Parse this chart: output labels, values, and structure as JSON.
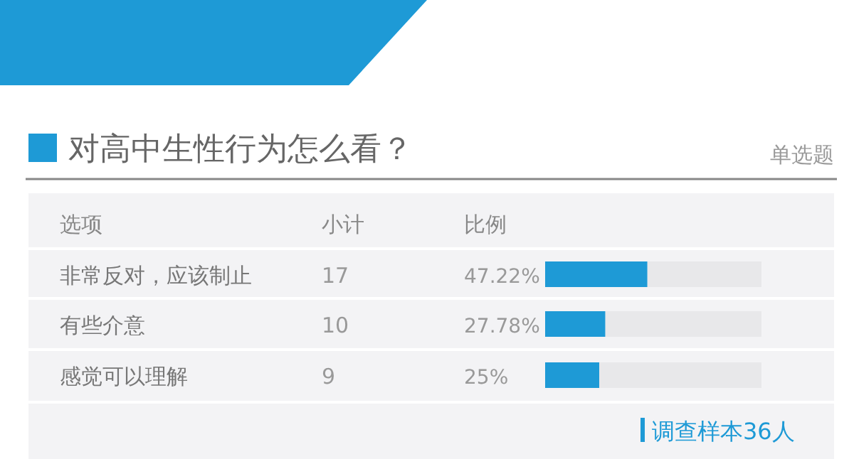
{
  "chart_data": {
    "type": "bar",
    "orientation": "horizontal",
    "title": "对高中生性行为怎么看？",
    "categories": [
      "非常反对，应该制止",
      "有些介意",
      "感觉可以理解"
    ],
    "values": [
      47.22,
      27.78,
      25
    ],
    "value_labels": [
      "47.22%",
      "27.78%",
      "25%"
    ],
    "color": "#1e9ad6",
    "xlim": [
      0,
      100
    ],
    "tick_labels": false,
    "annotations": [
      "单选题",
      "选项",
      "小计",
      "比例",
      "17",
      "10",
      "9",
      "调查样本36人"
    ]
  }
}
